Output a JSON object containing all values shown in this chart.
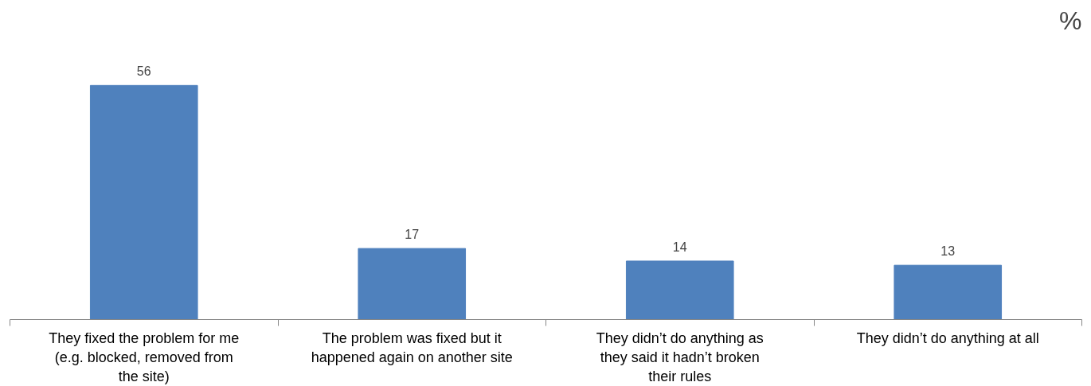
{
  "chart_data": {
    "type": "bar",
    "categories": [
      "They fixed the problem for me (e.g. blocked, removed from the site)",
      "The problem was fixed but it happened again on another site",
      "They didn’t do anything as they said it hadn’t broken their rules",
      "They didn’t do anything at all"
    ],
    "values": [
      56,
      17,
      14,
      13
    ],
    "color": "#4f81bd",
    "data_labels": true,
    "grid": false,
    "annotations": [
      "%"
    ]
  }
}
